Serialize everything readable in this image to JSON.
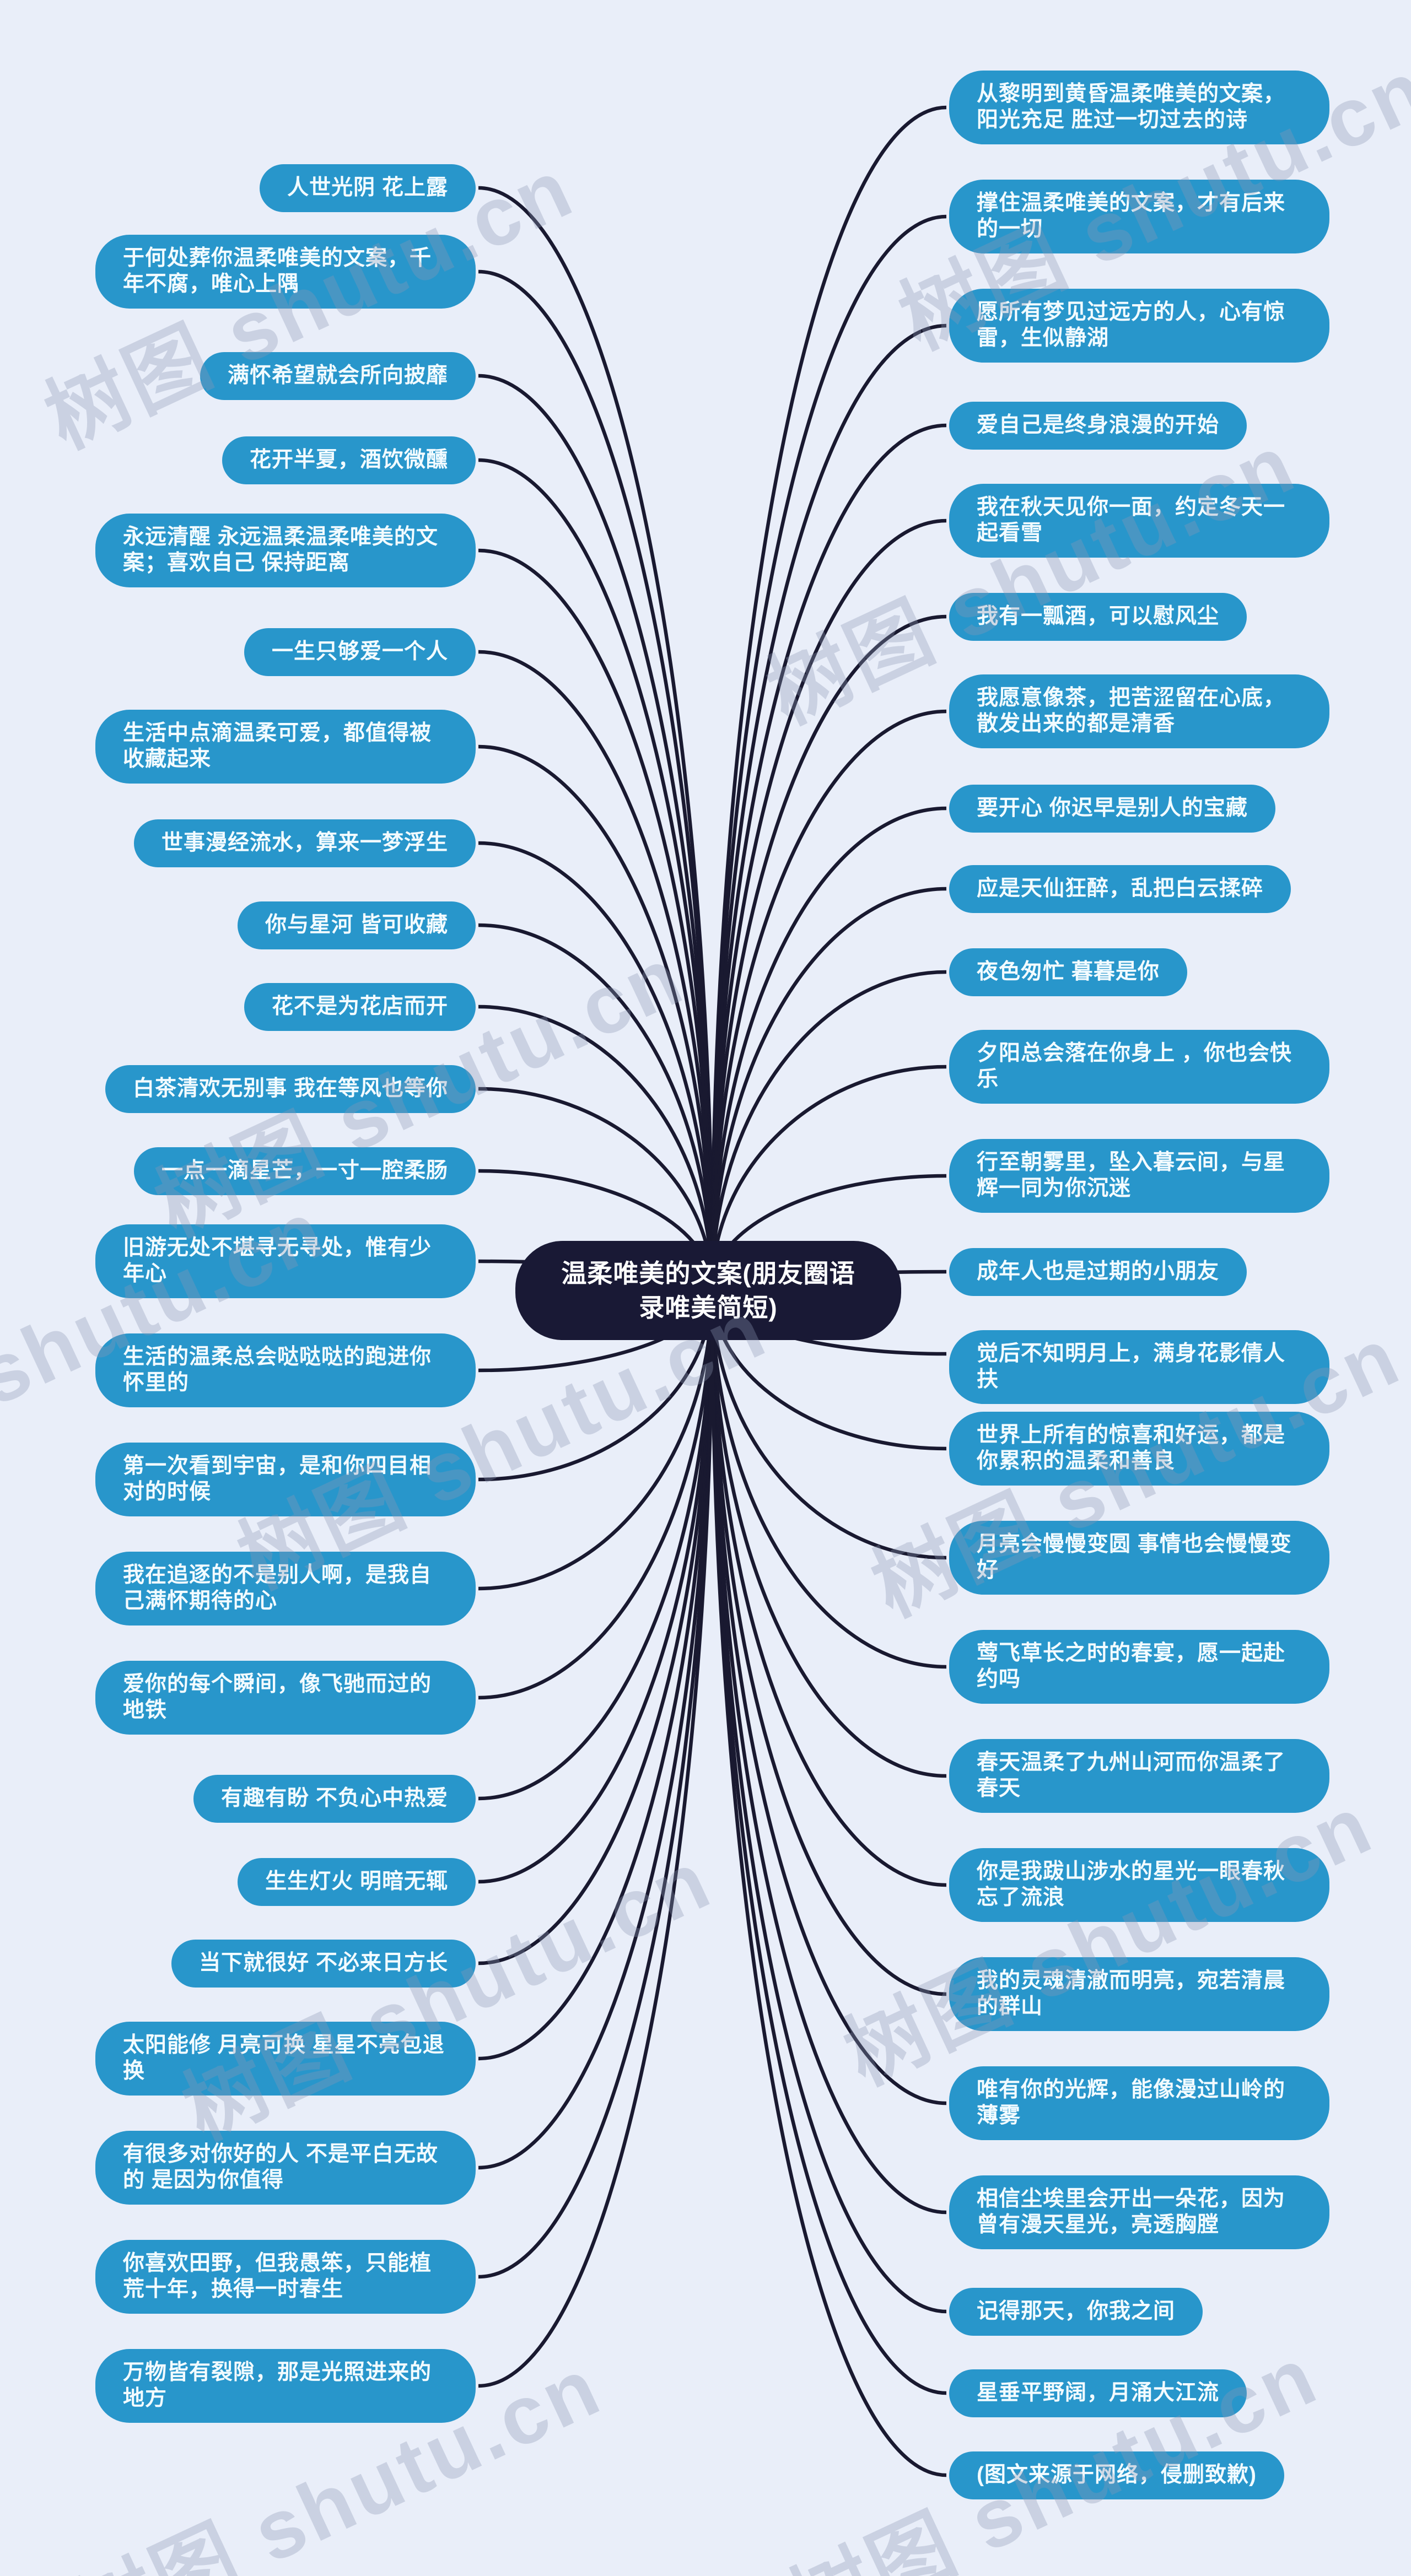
{
  "center": {
    "title": "温柔唯美的文案(朋友圈语录唯美简短)"
  },
  "watermark": {
    "text": "树图 shutu.cn"
  },
  "colors": {
    "background": "#e9eef9",
    "node_blue": "#2896cb",
    "node_text": "#f2fbff",
    "center_bg": "#191935",
    "center_text": "#ffffff",
    "line": "#191930",
    "watermark_gray": "#8e99b4"
  },
  "nodes": {
    "left": [
      {
        "text": "人世光阴 花上露"
      },
      {
        "text": "于何处葬你温柔唯美的文案，千年不腐，唯心上隅"
      },
      {
        "text": "满怀希望就会所向披靡"
      },
      {
        "text": "花开半夏，酒饮微醺"
      },
      {
        "text": "永远清醒 永远温柔温柔唯美的文案；喜欢自己 保持距离"
      },
      {
        "text": "一生只够爱一个人"
      },
      {
        "text": "生活中点滴温柔可爱，都值得被收藏起来"
      },
      {
        "text": "世事漫经流水，算来一梦浮生"
      },
      {
        "text": "你与星河 皆可收藏"
      },
      {
        "text": "花不是为花店而开"
      },
      {
        "text": "白茶清欢无别事 我在等风也等你"
      },
      {
        "text": "一点一滴星芒，一寸一腔柔肠"
      },
      {
        "text": "旧游无处不堪寻无寻处，惟有少年心"
      },
      {
        "text": "生活的温柔总会哒哒哒的跑进你怀里的"
      },
      {
        "text": "第一次看到宇宙，是和你四目相对的时候"
      },
      {
        "text": "我在追逐的不是别人啊，是我自己满怀期待的心"
      },
      {
        "text": "爱你的每个瞬间，像飞驰而过的地铁"
      },
      {
        "text": "有趣有盼 不负心中热爱"
      },
      {
        "text": "生生灯火 明暗无辄"
      },
      {
        "text": "当下就很好 不必来日方长"
      },
      {
        "text": "太阳能修 月亮可换 星星不亮包退换"
      },
      {
        "text": "有很多对你好的人 不是平白无故的 是因为你值得"
      },
      {
        "text": "你喜欢田野，但我愚笨，只能植荒十年，换得一时春生"
      },
      {
        "text": "万物皆有裂隙，那是光照进来的地方"
      }
    ],
    "right": [
      {
        "text": "从黎明到黄昏温柔唯美的文案，阳光充足 胜过一切过去的诗"
      },
      {
        "text": "撑住温柔唯美的文案，才有后来的一切"
      },
      {
        "text": "愿所有梦见过远方的人，心有惊雷，生似静湖"
      },
      {
        "text": "爱自己是终身浪漫的开始"
      },
      {
        "text": "我在秋天见你一面，约定冬天一起看雪"
      },
      {
        "text": "我有一瓢酒，可以慰风尘"
      },
      {
        "text": "我愿意像茶，把苦涩留在心底，散发出来的都是清香"
      },
      {
        "text": "要开心 你迟早是别人的宝藏"
      },
      {
        "text": "应是天仙狂醉，乱把白云揉碎"
      },
      {
        "text": "夜色匆忙 暮暮是你"
      },
      {
        "text": "夕阳总会落在你身上 ，你也会快乐"
      },
      {
        "text": "行至朝雾里，坠入暮云间，与星辉一同为你沉迷"
      },
      {
        "text": "成年人也是过期的小朋友"
      },
      {
        "text": "觉后不知明月上，满身花影倩人扶"
      },
      {
        "text": "世界上所有的惊喜和好运，都是你累积的温柔和善良"
      },
      {
        "text": "月亮会慢慢变圆 事情也会慢慢变好"
      },
      {
        "text": "莺飞草长之时的春宴，愿一起赴约吗"
      },
      {
        "text": "春天温柔了九州山河而你温柔了春天"
      },
      {
        "text": "你是我跋山涉水的星光一眼春秋忘了流浪"
      },
      {
        "text": "我的灵魂清澈而明亮，宛若清晨的群山"
      },
      {
        "text": "唯有你的光辉，能像漫过山岭的薄雾"
      },
      {
        "text": "相信尘埃里会开出一朵花，因为曾有漫天星光，亮透胸膛"
      },
      {
        "text": "记得那天，你我之间"
      },
      {
        "text": "星垂平野阔，月涌大江流"
      },
      {
        "text": "(图文来源于网络，侵删致歉)"
      }
    ]
  }
}
